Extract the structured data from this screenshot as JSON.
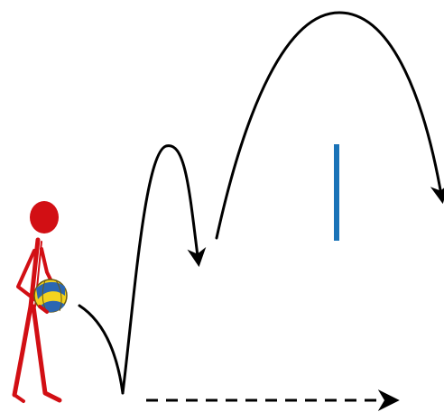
{
  "diagram": {
    "kind": "volleyball-serve-trajectory",
    "elements": [
      "player-figure",
      "volleyball-icon",
      "ball-trajectory",
      "net-marker",
      "movement-direction-arrow"
    ]
  },
  "colors": {
    "figure": "#d20f14",
    "trajectory": "#000000",
    "net": "#1a73b8",
    "ball_yellow": "#f3d31f",
    "ball_blue": "#2b66b1",
    "ball_outline": "#6a5a10"
  },
  "labels": {}
}
